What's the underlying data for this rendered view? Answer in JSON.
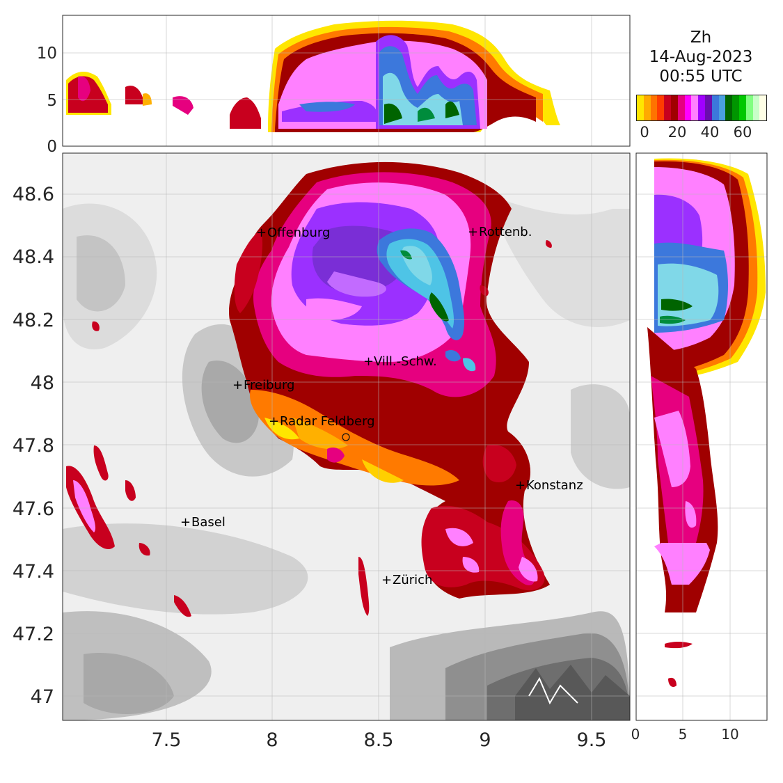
{
  "header": {
    "variable": "Zh",
    "date": "14-Aug-2023",
    "time": "00:55 UTC"
  },
  "colorbar": {
    "colors": [
      "#ffe600",
      "#ffaa00",
      "#ff7300",
      "#ff3c00",
      "#c8001e",
      "#a00000",
      "#e6007f",
      "#ff00ff",
      "#ff80ff",
      "#a000ff",
      "#6a0dad",
      "#3c78dc",
      "#4aa0e0",
      "#006400",
      "#009600",
      "#00c800",
      "#80ff80",
      "#c8ffc8",
      "#ffffe6"
    ],
    "tick_labels": [
      "0",
      "20",
      "40",
      "60"
    ]
  },
  "map": {
    "x_ticks": [
      "7.5",
      "8",
      "8.5",
      "9",
      "9.5"
    ],
    "y_ticks": [
      "48.6",
      "48.4",
      "48.2",
      "48",
      "47.8",
      "47.6",
      "47.4",
      "47.2",
      "47"
    ],
    "cities": [
      {
        "name": "Offenburg"
      },
      {
        "name": "Rottenb."
      },
      {
        "name": "Vill.-Schw."
      },
      {
        "name": "Freiburg"
      },
      {
        "name": "Radar Feldberg"
      },
      {
        "name": "Konstanz"
      },
      {
        "name": "Basel"
      },
      {
        "name": "Zürich"
      }
    ]
  },
  "top_panel": {
    "y_ticks": [
      "10",
      "5",
      "0"
    ]
  },
  "side_panel": {
    "x_ticks": [
      "0",
      "5",
      "10"
    ]
  }
}
